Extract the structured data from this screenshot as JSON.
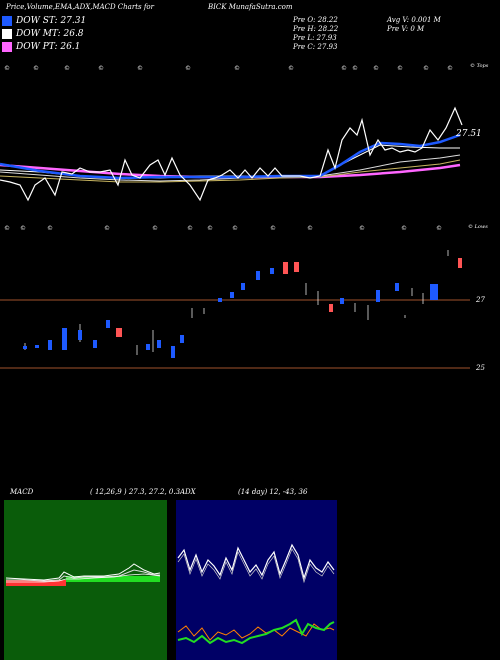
{
  "header": {
    "title": "Price,Volume,EMA,ADX,MACD Charts for",
    "symbol": "BICK",
    "site": "MunafaSutra.com"
  },
  "legend": [
    {
      "label": "DOW ST: 27.31",
      "color": "#1e5aff"
    },
    {
      "label": "DOW MT: 26.8",
      "color": "#ffffff"
    },
    {
      "label": "DOW PT: 26.1",
      "color": "#ff66ff"
    }
  ],
  "prev_stats": {
    "open": "Pre  O: 28.22",
    "high": "Pre  H: 28.22",
    "low": "Pre  L: 27.93",
    "close": "Pre  C: 27.93"
  },
  "volume_stats": {
    "avg": "Avg V: 0.001 M",
    "prev": "Pre  V: 0  M"
  },
  "labels": {
    "price_last": "27.51",
    "tops": "© Tops",
    "lows": "© Lows",
    "level_27": "27",
    "level_25": "25"
  },
  "colors": {
    "background": "#000000",
    "ema_short": "#1e5aff",
    "ema_mid": "#ffffff",
    "ema_long": "#ff66ff",
    "grid_line": "#a0522d",
    "up_candle": "#1e5aff",
    "down_candle": "#ff5555",
    "macd_bg": "#0a5c0a",
    "adx_bg": "#000066"
  },
  "macd_panel": {
    "title": "MACD",
    "params": "( 12,26,9 ) 27.3, 27.2, 0.3"
  },
  "adx_panel": {
    "title": "ADX",
    "params": "(14  day) 12, -43, 36"
  },
  "chart_data": {
    "type": "line",
    "title": "Price,Volume,EMA,ADX,MACD Charts for BICK",
    "series": [
      {
        "name": "DOW ST",
        "last": 27.31
      },
      {
        "name": "DOW MT",
        "last": 26.8
      },
      {
        "name": "DOW PT",
        "last": 26.1
      }
    ],
    "price_last": 27.51,
    "levels": [
      27,
      25
    ],
    "macd": {
      "fast": 12,
      "slow": 26,
      "signal": 9,
      "values": [
        27.3,
        27.2,
        0.3
      ]
    },
    "adx": {
      "period_days": 14,
      "values": [
        12,
        -43,
        36
      ]
    },
    "prev": {
      "open": 28.22,
      "high": 28.22,
      "low": 27.93,
      "close": 27.93
    },
    "avg_volume_m": 0.001,
    "prev_volume_m": 0
  }
}
